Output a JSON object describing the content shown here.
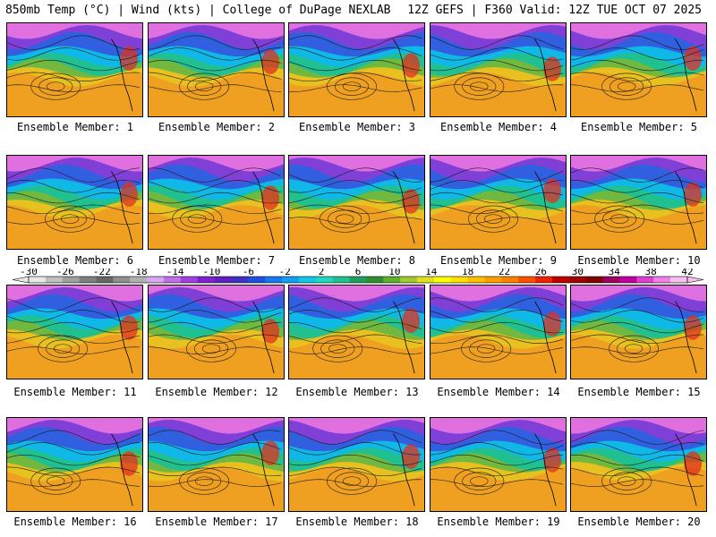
{
  "header": {
    "left": "850mb Temp (°C) | Wind (kts) | College of DuPage NEXLAB",
    "right": "12Z GEFS | F360 Valid: 12Z TUE OCT 07 2025"
  },
  "members": [
    "Ensemble Member: 1",
    "Ensemble Member: 2",
    "Ensemble Member: 3",
    "Ensemble Member: 4",
    "Ensemble Member: 5",
    "Ensemble Member: 6",
    "Ensemble Member: 7",
    "Ensemble Member: 8",
    "Ensemble Member: 9",
    "Ensemble Member: 10",
    "Ensemble Member: 11",
    "Ensemble Member: 12",
    "Ensemble Member: 13",
    "Ensemble Member: 14",
    "Ensemble Member: 15",
    "Ensemble Member: 16",
    "Ensemble Member: 17",
    "Ensemble Member: 18",
    "Ensemble Member: 19",
    "Ensemble Member: 20"
  ],
  "colorbar": {
    "ticks": [
      "-30",
      "-26",
      "-22",
      "-18",
      "-14",
      "-10",
      "-6",
      "-2",
      "2",
      "6",
      "10",
      "14",
      "18",
      "22",
      "26",
      "30",
      "34",
      "38",
      "42"
    ],
    "colors": [
      "#e8e8e8",
      "#c0c0c0",
      "#a0a0a0",
      "#808080",
      "#686868",
      "#909090",
      "#b0b0b0",
      "#d8a8f0",
      "#c070e8",
      "#a040e0",
      "#8020d0",
      "#6020c0",
      "#4030c8",
      "#2050e0",
      "#1878f0",
      "#10a0f0",
      "#10c8e8",
      "#20d8c0",
      "#20c090",
      "#20a060",
      "#309030",
      "#60b030",
      "#a0c830",
      "#e0e020",
      "#ffff00",
      "#ffe000",
      "#ffc000",
      "#ffa000",
      "#ff8000",
      "#ff5000",
      "#f02000",
      "#c00000",
      "#a00000",
      "#800000",
      "#a00060",
      "#c000a0",
      "#e040d0",
      "#f080e8",
      "#f8c0f0"
    ]
  }
}
